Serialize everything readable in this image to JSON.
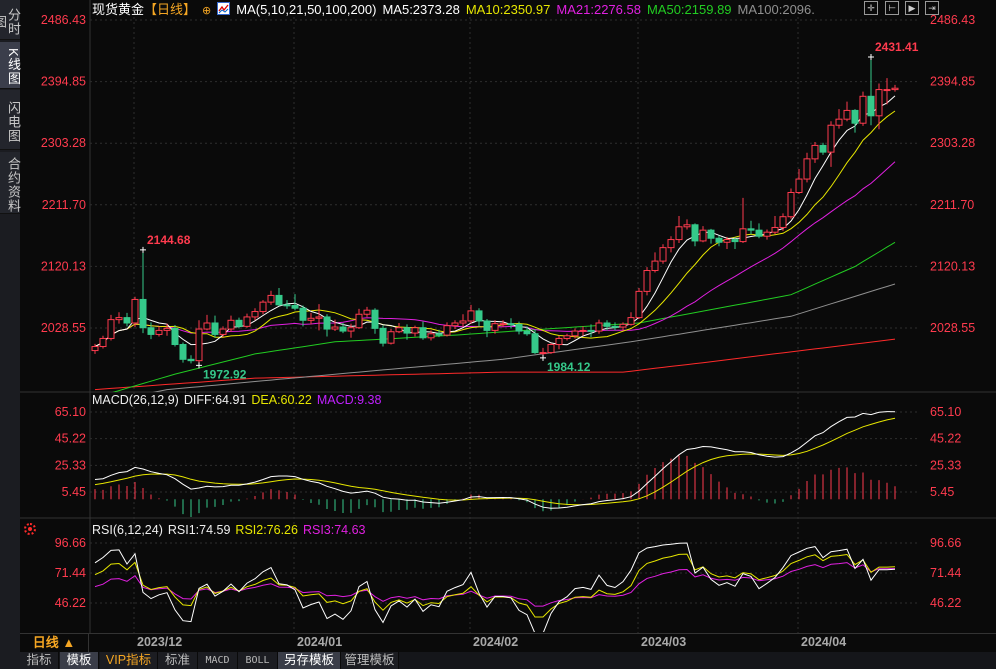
{
  "sidebar": {
    "items": [
      {
        "label": "分时图",
        "active": false
      },
      {
        "label": "K线图",
        "active": true
      },
      {
        "label": "闪电图",
        "active": false
      },
      {
        "label": "合约资料",
        "active": false
      }
    ]
  },
  "header": {
    "title": "现货黄金",
    "period": "【日线】",
    "crosshair_icon": "⊕",
    "ma_label": "MA(5,10,21,50,100,200)",
    "ma5": "MA5:2373.28",
    "ma10": "MA10:2350.97",
    "ma21": "MA21:2276.58",
    "ma50": "MA50:2159.89",
    "ma100": "MA100:2096."
  },
  "toolbar_icons": [
    "crosshair-icon",
    "zoom-range-icon",
    "play-icon",
    "goto-end-icon"
  ],
  "macd": {
    "label": "MACD(26,12,9)",
    "diff": "DIFF:64.91",
    "dea": "DEA:60.22",
    "macd": "MACD:9.38"
  },
  "rsi": {
    "label": "RSI(6,12,24)",
    "rsi1": "RSI1:74.59",
    "rsi2": "RSI2:76.26",
    "rsi3": "RSI3:74.63"
  },
  "date_row": {
    "period": "日线 ▲"
  },
  "tabs": [
    {
      "label": "指标"
    },
    {
      "label": "模板"
    },
    {
      "label": "VIP指标"
    },
    {
      "label": "标准"
    },
    {
      "label": "MACD"
    },
    {
      "label": "BOLL"
    },
    {
      "label": "另存模板"
    },
    {
      "label": "管理模板"
    }
  ],
  "colors": {
    "up": "#ff3b4e",
    "down": "#35c98a",
    "ma5": "#ffffff",
    "ma10": "#e6e600",
    "ma21": "#e020e0",
    "ma50": "#22cc22",
    "ma100": "#909090",
    "ma200": "#ff2a2a",
    "axis_text": "#ff3b4e"
  },
  "chart_data": [
    {
      "type": "candlestick",
      "title": "现货黄金",
      "y_ticks": [
        "2486.43",
        "2394.85",
        "2303.28",
        "2211.70",
        "2120.13",
        "2028.55"
      ],
      "x_ticks": [
        {
          "label": "2023/12",
          "index": 5
        },
        {
          "label": "2024/01",
          "index": 25
        },
        {
          "label": "2024/02",
          "index": 47
        },
        {
          "label": "2024/03",
          "index": 68
        },
        {
          "label": "2024/04",
          "index": 88
        }
      ],
      "annotations": [
        {
          "text": "2144.68",
          "index": 6,
          "kind": "high"
        },
        {
          "text": "1972.92",
          "index": 13,
          "kind": "low"
        },
        {
          "text": "1984.12",
          "index": 56,
          "kind": "low"
        },
        {
          "text": "2431.41",
          "index": 97,
          "kind": "high"
        }
      ],
      "ohlc": [
        [
          1995,
          2005,
          1990,
          2001
        ],
        [
          2001,
          2017,
          1998,
          2013
        ],
        [
          2013,
          2048,
          2010,
          2041
        ],
        [
          2041,
          2052,
          2035,
          2044
        ],
        [
          2044,
          2051,
          2031,
          2036
        ],
        [
          2036,
          2075,
          2030,
          2071
        ],
        [
          2071,
          2144.68,
          2021,
          2029
        ],
        [
          2029,
          2037,
          2012,
          2019
        ],
        [
          2019,
          2031,
          2016,
          2025
        ],
        [
          2025,
          2035,
          2017,
          2028
        ],
        [
          2028,
          2033,
          2001,
          2004
        ],
        [
          2004,
          2007,
          1977,
          1982
        ],
        [
          1982,
          1988,
          1976,
          1980
        ],
        [
          1980,
          2040,
          1972.92,
          2027
        ],
        [
          2027,
          2048,
          2025,
          2036
        ],
        [
          2036,
          2047,
          2014,
          2019
        ],
        [
          2019,
          2031,
          2015,
          2027
        ],
        [
          2027,
          2047,
          2023,
          2040
        ],
        [
          2040,
          2044,
          2028,
          2031
        ],
        [
          2031,
          2050,
          2029,
          2045
        ],
        [
          2045,
          2058,
          2040,
          2053
        ],
        [
          2053,
          2070,
          2049,
          2067
        ],
        [
          2067,
          2084,
          2063,
          2077
        ],
        [
          2077,
          2088,
          2061,
          2063
        ],
        [
          2063,
          2070,
          2057,
          2062
        ],
        [
          2062,
          2079,
          2055,
          2058
        ],
        [
          2058,
          2062,
          2031,
          2040
        ],
        [
          2040,
          2051,
          2034,
          2043
        ],
        [
          2043,
          2064,
          2025,
          2045
        ],
        [
          2045,
          2049,
          2016,
          2027
        ],
        [
          2027,
          2041,
          2024,
          2030
        ],
        [
          2030,
          2036,
          2021,
          2024
        ],
        [
          2024,
          2035,
          2014,
          2029
        ],
        [
          2029,
          2057,
          2027,
          2049
        ],
        [
          2049,
          2060,
          2045,
          2055
        ],
        [
          2055,
          2058,
          2020,
          2028
        ],
        [
          2028,
          2032,
          2001,
          2006
        ],
        [
          2006,
          2027,
          2004,
          2023
        ],
        [
          2023,
          2036,
          2021,
          2029
        ],
        [
          2029,
          2034,
          2011,
          2021
        ],
        [
          2021,
          2032,
          2016,
          2029
        ],
        [
          2029,
          2038,
          2011,
          2014
        ],
        [
          2014,
          2025,
          2010,
          2020
        ],
        [
          2020,
          2026,
          2015,
          2018
        ],
        [
          2018,
          2037,
          2016,
          2032
        ],
        [
          2032,
          2040,
          2027,
          2036
        ],
        [
          2036,
          2049,
          2030,
          2039
        ],
        [
          2039,
          2063,
          2035,
          2054
        ],
        [
          2054,
          2058,
          2031,
          2039
        ],
        [
          2039,
          2042,
          2015,
          2025
        ],
        [
          2025,
          2040,
          2020,
          2035
        ],
        [
          2035,
          2040,
          2030,
          2035
        ],
        [
          2035,
          2043,
          2028,
          2034
        ],
        [
          2034,
          2038,
          2019,
          2024
        ],
        [
          2024,
          2031,
          2017,
          2020
        ],
        [
          2020,
          2026,
          1990,
          1992
        ],
        [
          1992,
          1999,
          1984.12,
          1992
        ],
        [
          1992,
          2006,
          1990,
          2004
        ],
        [
          2004,
          2017,
          1997,
          2013
        ],
        [
          2013,
          2020,
          2010,
          2017
        ],
        [
          2017,
          2028,
          2013,
          2024
        ],
        [
          2024,
          2031,
          2017,
          2025
        ],
        [
          2025,
          2034,
          2015,
          2024
        ],
        [
          2024,
          2041,
          2020,
          2036
        ],
        [
          2036,
          2040,
          2025,
          2031
        ],
        [
          2031,
          2037,
          2025,
          2030
        ],
        [
          2030,
          2037,
          2024,
          2034
        ],
        [
          2034,
          2052,
          2032,
          2044
        ],
        [
          2044,
          2088,
          2042,
          2083
        ],
        [
          2083,
          2119,
          2077,
          2114
        ],
        [
          2114,
          2141,
          2111,
          2128
        ],
        [
          2128,
          2153,
          2124,
          2148
        ],
        [
          2148,
          2165,
          2141,
          2160
        ],
        [
          2160,
          2195,
          2155,
          2179
        ],
        [
          2179,
          2190,
          2175,
          2182
        ],
        [
          2182,
          2184,
          2150,
          2158
        ],
        [
          2158,
          2180,
          2156,
          2174
        ],
        [
          2174,
          2176,
          2154,
          2162
        ],
        [
          2162,
          2166,
          2150,
          2156
        ],
        [
          2156,
          2164,
          2146,
          2160
        ],
        [
          2160,
          2163,
          2146,
          2157
        ],
        [
          2157,
          2222,
          2155,
          2176
        ],
        [
          2176,
          2188,
          2168,
          2174
        ],
        [
          2174,
          2184,
          2162,
          2165
        ],
        [
          2165,
          2175,
          2160,
          2171
        ],
        [
          2171,
          2195,
          2168,
          2178
        ],
        [
          2178,
          2199,
          2173,
          2194
        ],
        [
          2194,
          2236,
          2191,
          2230
        ],
        [
          2230,
          2265,
          2228,
          2250
        ],
        [
          2250,
          2289,
          2245,
          2280
        ],
        [
          2280,
          2305,
          2274,
          2300
        ],
        [
          2300,
          2304,
          2286,
          2290
        ],
        [
          2290,
          2336,
          2268,
          2330
        ],
        [
          2330,
          2354,
          2325,
          2339
        ],
        [
          2339,
          2365,
          2336,
          2352
        ],
        [
          2352,
          2354,
          2319,
          2333
        ],
        [
          2333,
          2380,
          2329,
          2373
        ],
        [
          2373,
          2431.41,
          2330,
          2344
        ],
        [
          2344,
          2392,
          2324,
          2383
        ],
        [
          2383,
          2400,
          2361,
          2383
        ],
        [
          2383,
          2390,
          2380,
          2385
        ]
      ],
      "ma_long": {
        "MA50": [
          [
            0,
            1925
          ],
          [
            10,
            1960
          ],
          [
            20,
            1990
          ],
          [
            30,
            2008
          ],
          [
            45,
            2018
          ],
          [
            60,
            2030
          ],
          [
            68,
            2036
          ],
          [
            87,
            2078
          ],
          [
            95,
            2120
          ],
          [
            100,
            2156
          ]
        ],
        "MA100": [
          [
            0,
            1915
          ],
          [
            9,
            1937
          ],
          [
            32,
            1962
          ],
          [
            51,
            1982
          ],
          [
            67,
            2008
          ],
          [
            87,
            2046
          ],
          [
            100,
            2094
          ]
        ],
        "MA200": [
          [
            0,
            1937
          ],
          [
            20,
            1954
          ],
          [
            51,
            1963
          ],
          [
            66,
            1963
          ],
          [
            76,
            1977
          ],
          [
            100,
            2012
          ]
        ]
      }
    },
    {
      "type": "line",
      "title": "MACD(26,12,9)",
      "y_ticks": [
        "65.10",
        "45.22",
        "25.33",
        "5.45"
      ],
      "series": [
        {
          "name": "DIFF"
        },
        {
          "name": "DEA"
        },
        {
          "name": "MACD"
        }
      ]
    },
    {
      "type": "line",
      "title": "RSI(6,12,24)",
      "y_ticks": [
        "96.66",
        "71.44",
        "46.22"
      ],
      "series": [
        {
          "name": "RSI1"
        },
        {
          "name": "RSI2"
        },
        {
          "name": "RSI3"
        }
      ]
    }
  ]
}
